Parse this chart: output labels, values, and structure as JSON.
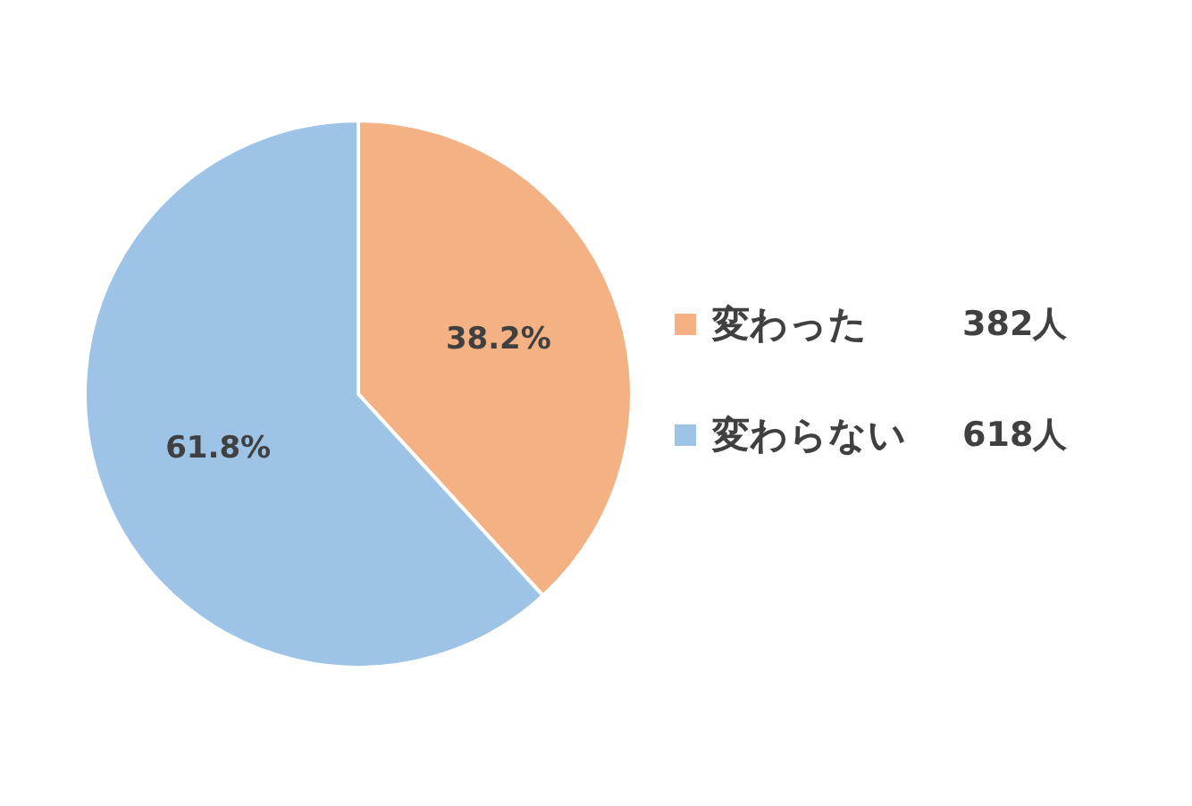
{
  "chart_data": {
    "type": "pie",
    "categories": [
      "変わった",
      "変わらない"
    ],
    "values": [
      38.2,
      61.8
    ],
    "colors": [
      "#f4b183",
      "#9dc3e6"
    ],
    "value_labels": [
      "38.2%",
      "61.8%"
    ],
    "annotations": [
      "382人",
      "618人"
    ],
    "legend": "right"
  }
}
